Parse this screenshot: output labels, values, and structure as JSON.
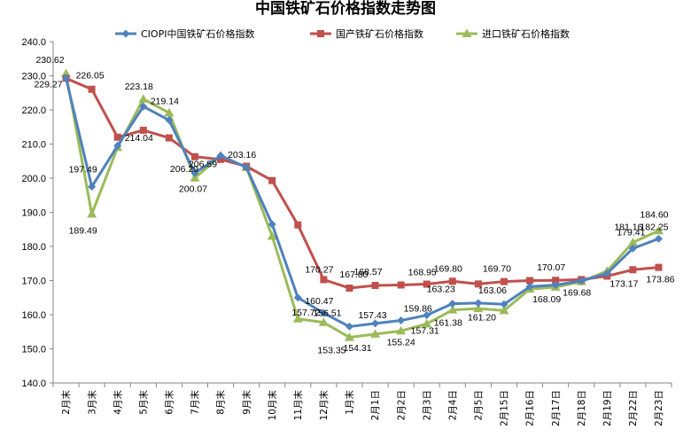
{
  "chart_data": {
    "type": "line",
    "title": "中国铁矿石价格指数走势图",
    "xlabel": "",
    "ylabel": "",
    "ylim": [
      140,
      240
    ],
    "yticks": [
      "140.0",
      "150.0",
      "160.0",
      "170.0",
      "180.0",
      "190.0",
      "200.0",
      "210.0",
      "220.0",
      "230.0",
      "240.0"
    ],
    "grid": false,
    "legend_position": "top",
    "categories": [
      "2月末",
      "3月末",
      "4月末",
      "5月末",
      "6月末",
      "7月末",
      "8月末",
      "9月末",
      "10月末",
      "11月末",
      "12月末",
      "1月末",
      "2月1日",
      "2月2日",
      "2月3日",
      "2月4日",
      "2月5日",
      "2月15日",
      "2月16日",
      "2月17日",
      "2月18日",
      "2月19日",
      "2月22日",
      "2月23日"
    ],
    "series": [
      {
        "name": "CIOPI中国铁矿石价格指数",
        "color": "#4f81bd",
        "marker": "diamond",
        "values": [
          229.27,
          197.49,
          209.5,
          221.0,
          217.0,
          201.5,
          206.59,
          203.16,
          186.5,
          165.0,
          160.47,
          156.51,
          157.43,
          158.3,
          159.86,
          163.23,
          163.4,
          163.06,
          168.2,
          168.7,
          169.9,
          172.1,
          179.41,
          182.25
        ]
      },
      {
        "name": "国产铁矿石价格指数",
        "color": "#c0504d",
        "marker": "square",
        "values": [
          229.27,
          226.05,
          212.0,
          214.04,
          211.8,
          206.29,
          205.5,
          203.5,
          199.3,
          186.3,
          170.27,
          167.8,
          168.57,
          168.7,
          168.95,
          169.8,
          169.0,
          169.7,
          170.0,
          170.07,
          170.3,
          171.3,
          173.17,
          173.86
        ]
      },
      {
        "name": "进口铁矿石价格指数",
        "color": "#9bbb59",
        "marker": "triangle",
        "values": [
          230.62,
          189.49,
          209.0,
          223.18,
          219.14,
          200.07,
          206.59,
          203.16,
          183.0,
          158.8,
          157.72,
          153.35,
          154.31,
          155.24,
          157.31,
          161.38,
          161.8,
          161.2,
          167.5,
          168.09,
          169.68,
          172.8,
          181.16,
          184.6
        ]
      }
    ],
    "annotations": [
      {
        "text": "230.62",
        "series": 2,
        "index": 0
      },
      {
        "text": "229.27",
        "series": 0,
        "index": 0
      },
      {
        "text": "226.05",
        "series": 1,
        "index": 1
      },
      {
        "text": "197.49",
        "series": 0,
        "index": 1
      },
      {
        "text": "189.49",
        "series": 2,
        "index": 1
      },
      {
        "text": "223.18",
        "series": 2,
        "index": 3
      },
      {
        "text": "214.04",
        "series": 1,
        "index": 3
      },
      {
        "text": "219.14",
        "series": 2,
        "index": 4
      },
      {
        "text": "206.29",
        "series": 1,
        "index": 5
      },
      {
        "text": "200.07",
        "series": 2,
        "index": 5
      },
      {
        "text": "206.59",
        "series": 0,
        "index": 6
      },
      {
        "text": "203.16",
        "series": 0,
        "index": 7
      },
      {
        "text": "170.27",
        "series": 1,
        "index": 10
      },
      {
        "text": "160.47",
        "series": 0,
        "index": 10
      },
      {
        "text": "157.72",
        "series": 2,
        "index": 10
      },
      {
        "text": "167.80",
        "series": 1,
        "index": 11
      },
      {
        "text": "156.51",
        "series": 0,
        "index": 11
      },
      {
        "text": "153.35",
        "series": 2,
        "index": 11
      },
      {
        "text": "168.57",
        "series": 1,
        "index": 12
      },
      {
        "text": "157.43",
        "series": 0,
        "index": 12
      },
      {
        "text": "154.31",
        "series": 2,
        "index": 12
      },
      {
        "text": "155.24",
        "series": 2,
        "index": 13
      },
      {
        "text": "168.95",
        "series": 1,
        "index": 14
      },
      {
        "text": "159.86",
        "series": 0,
        "index": 14
      },
      {
        "text": "157.31",
        "series": 2,
        "index": 14
      },
      {
        "text": "169.80",
        "series": 1,
        "index": 15
      },
      {
        "text": "163.23",
        "series": 0,
        "index": 15
      },
      {
        "text": "161.38",
        "series": 2,
        "index": 15
      },
      {
        "text": "169.70",
        "series": 1,
        "index": 17
      },
      {
        "text": "163.06",
        "series": 0,
        "index": 17
      },
      {
        "text": "161.20",
        "series": 2,
        "index": 17
      },
      {
        "text": "170.07",
        "series": 1,
        "index": 19
      },
      {
        "text": "168.09",
        "series": 2,
        "index": 19
      },
      {
        "text": "169.68",
        "series": 2,
        "index": 20
      },
      {
        "text": "181.16",
        "series": 2,
        "index": 22
      },
      {
        "text": "179.41",
        "series": 0,
        "index": 22
      },
      {
        "text": "173.17",
        "series": 1,
        "index": 22
      },
      {
        "text": "184.60",
        "series": 2,
        "index": 23
      },
      {
        "text": "182.25",
        "series": 0,
        "index": 23
      },
      {
        "text": "173.86",
        "series": 1,
        "index": 23
      }
    ]
  }
}
